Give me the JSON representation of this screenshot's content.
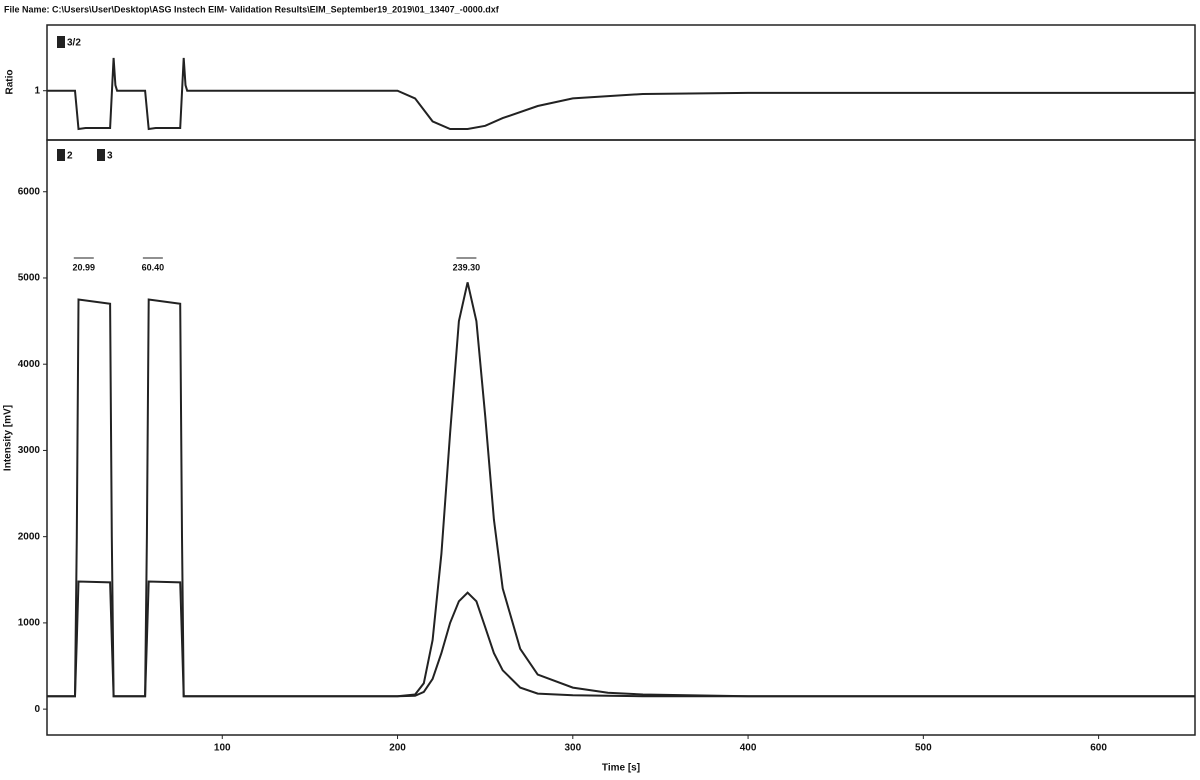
{
  "header": {
    "title": "File Name: C:\\Users\\User\\Desktop\\ASG Instech EIM- Validation Results\\EIM_September19_2019\\01_13407_-0000.dxf"
  },
  "chart_data": [
    {
      "type": "line",
      "y_label": "Ratio",
      "x": [
        0,
        16,
        18,
        22,
        36,
        38,
        39,
        40,
        56,
        58,
        62,
        76,
        78,
        79,
        80,
        200,
        210,
        220,
        230,
        240,
        250,
        260,
        280,
        300,
        340,
        400,
        655
      ],
      "series": [
        {
          "name": "3/2",
          "color": "#222222",
          "values": [
            1,
            1,
            0.65,
            0.66,
            0.66,
            1.3,
            1.05,
            1,
            1,
            0.65,
            0.66,
            0.66,
            1.3,
            1.05,
            1,
            1,
            0.93,
            0.72,
            0.65,
            0.65,
            0.68,
            0.75,
            0.86,
            0.93,
            0.97,
            0.98,
            0.98
          ]
        }
      ],
      "xlim": [
        0,
        655
      ],
      "ylim": [
        0.55,
        1.6
      ],
      "yticks": [
        1
      ]
    },
    {
      "type": "line",
      "x_label": "Time [s]",
      "y_label": "Intensity [mV]",
      "x": [
        0,
        16,
        17,
        18,
        36,
        37,
        38,
        56,
        57,
        58,
        76,
        77,
        78,
        200,
        210,
        215,
        220,
        225,
        230,
        235,
        240,
        245,
        250,
        255,
        260,
        270,
        280,
        300,
        320,
        340,
        400,
        655
      ],
      "series": [
        {
          "name": "2",
          "color": "#222222",
          "values": [
            150,
            150,
            2000,
            4750,
            4700,
            2000,
            150,
            150,
            2000,
            4750,
            4700,
            2000,
            150,
            150,
            170,
            300,
            800,
            1800,
            3200,
            4500,
            4950,
            4500,
            3400,
            2200,
            1400,
            700,
            400,
            250,
            190,
            170,
            150,
            150
          ]
        },
        {
          "name": "3",
          "color": "#222222",
          "values": [
            150,
            150,
            800,
            1480,
            1470,
            800,
            150,
            150,
            800,
            1480,
            1470,
            800,
            150,
            150,
            155,
            200,
            350,
            650,
            1000,
            1250,
            1350,
            1250,
            950,
            650,
            450,
            250,
            180,
            160,
            155,
            150,
            150,
            150
          ]
        }
      ],
      "annotations": [
        {
          "text": "20.99",
          "x": 20.99
        },
        {
          "text": "60.40",
          "x": 60.4
        },
        {
          "text": "239.30",
          "x": 239.3
        }
      ],
      "xlim": [
        0,
        655
      ],
      "ylim": [
        -300,
        6600
      ],
      "xticks": [
        100,
        200,
        300,
        400,
        500,
        600
      ],
      "yticks": [
        0,
        1000,
        2000,
        3000,
        4000,
        5000,
        6000
      ]
    }
  ]
}
